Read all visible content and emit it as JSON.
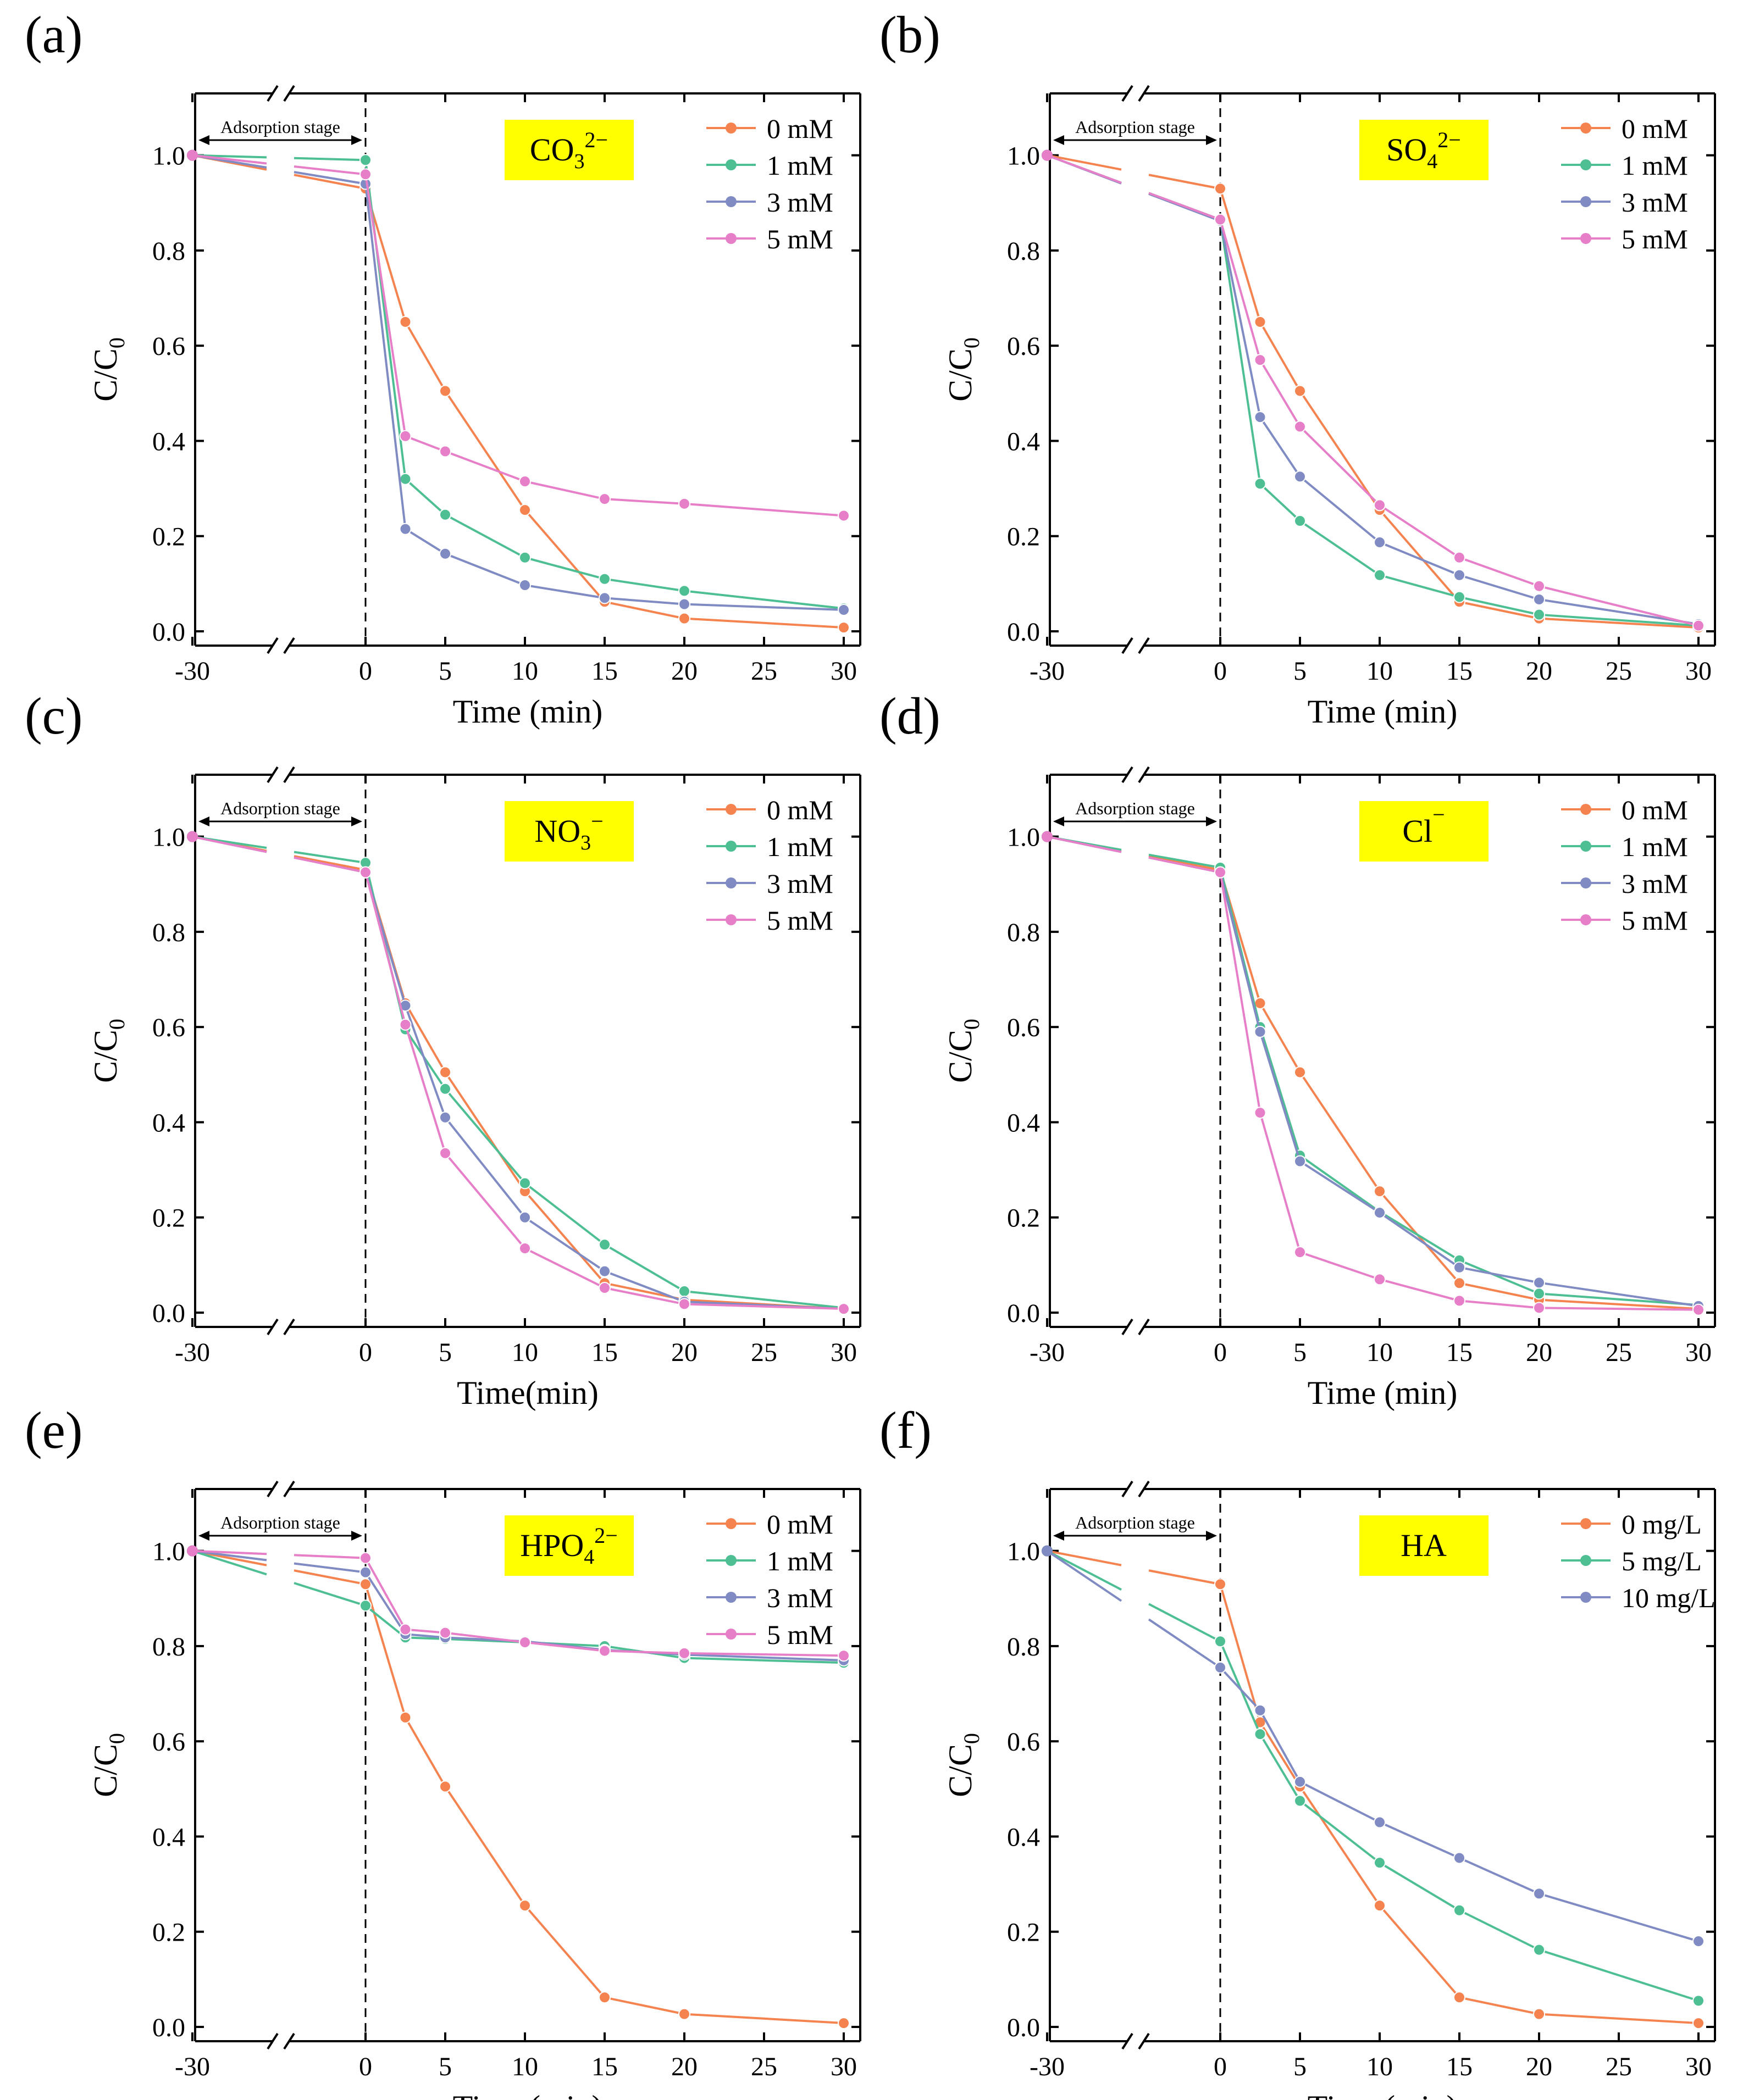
{
  "figure": {
    "adsorption_label": "Adsorption stage",
    "colors": {
      "s0": "#f4834f",
      "s1": "#4dbf93",
      "s2": "#7f8bc2",
      "s3": "#e77fc8",
      "highlight": "#ffff00",
      "axis": "#000000"
    }
  },
  "chart_data": [
    {
      "id": "a",
      "panel_label": "(a)",
      "type": "line",
      "title_parts": [
        {
          "t": "CO"
        },
        {
          "t": "3",
          "sub": true
        },
        {
          "t": "2−",
          "sup": true
        }
      ],
      "xlabel": "Time (min)",
      "ylabel": "C/C0",
      "xticks": [
        "-30",
        "0",
        "5",
        "10",
        "15",
        "20",
        "25",
        "30"
      ],
      "yticks": [
        "0.0",
        "0.2",
        "0.4",
        "0.6",
        "0.8",
        "1.0"
      ],
      "xlim": [
        0,
        30
      ],
      "ylim": [
        -0.03,
        1.13
      ],
      "x": [
        0,
        2.5,
        5,
        10,
        15,
        20,
        30
      ],
      "series": [
        {
          "name": "0 mM",
          "start": 1.0,
          "values": [
            0.93,
            0.65,
            0.505,
            0.255,
            0.062,
            0.027,
            0.008
          ]
        },
        {
          "name": "1 mM",
          "start": 1.0,
          "values": [
            0.99,
            0.32,
            0.245,
            0.155,
            0.11,
            0.085,
            0.048
          ]
        },
        {
          "name": "3 mM",
          "start": 1.0,
          "values": [
            0.94,
            0.215,
            0.163,
            0.097,
            0.07,
            0.057,
            0.045
          ]
        },
        {
          "name": "5 mM",
          "start": 1.0,
          "values": [
            0.96,
            0.41,
            0.378,
            0.315,
            0.278,
            0.268,
            0.243
          ]
        }
      ]
    },
    {
      "id": "b",
      "panel_label": "(b)",
      "type": "line",
      "title_parts": [
        {
          "t": "SO"
        },
        {
          "t": "4",
          "sub": true
        },
        {
          "t": "2−",
          "sup": true
        }
      ],
      "xlabel": "Time (min)",
      "ylabel": "C/C0",
      "xticks": [
        "-30",
        "0",
        "5",
        "10",
        "15",
        "20",
        "25",
        "30"
      ],
      "yticks": [
        "0.0",
        "0.2",
        "0.4",
        "0.6",
        "0.8",
        "1.0"
      ],
      "xlim": [
        0,
        30
      ],
      "ylim": [
        -0.03,
        1.13
      ],
      "x": [
        0,
        2.5,
        5,
        10,
        15,
        20,
        30
      ],
      "series": [
        {
          "name": "0 mM",
          "start": 1.0,
          "values": [
            0.93,
            0.65,
            0.505,
            0.255,
            0.062,
            0.027,
            0.008
          ]
        },
        {
          "name": "1 mM",
          "start": 1.0,
          "values": [
            0.865,
            0.31,
            0.232,
            0.118,
            0.072,
            0.035,
            0.012
          ]
        },
        {
          "name": "3 mM",
          "start": 1.0,
          "values": [
            0.862,
            0.45,
            0.325,
            0.187,
            0.118,
            0.067,
            0.015
          ]
        },
        {
          "name": "5 mM",
          "start": 1.0,
          "values": [
            0.865,
            0.57,
            0.43,
            0.265,
            0.155,
            0.095,
            0.012
          ]
        }
      ]
    },
    {
      "id": "c",
      "panel_label": "(c)",
      "type": "line",
      "title_parts": [
        {
          "t": "NO"
        },
        {
          "t": "3",
          "sub": true
        },
        {
          "t": "−",
          "sup": true
        }
      ],
      "xlabel": "Time(min)",
      "ylabel": "C/C0",
      "xticks": [
        "-30",
        "0",
        "5",
        "10",
        "15",
        "20",
        "25",
        "30"
      ],
      "yticks": [
        "0.0",
        "0.2",
        "0.4",
        "0.6",
        "0.8",
        "1.0"
      ],
      "xlim": [
        0,
        30
      ],
      "ylim": [
        -0.03,
        1.13
      ],
      "x": [
        0,
        2.5,
        5,
        10,
        15,
        20,
        30
      ],
      "series": [
        {
          "name": "0 mM",
          "start": 1.0,
          "values": [
            0.93,
            0.65,
            0.505,
            0.255,
            0.062,
            0.027,
            0.008
          ]
        },
        {
          "name": "1 mM",
          "start": 1.0,
          "values": [
            0.945,
            0.595,
            0.47,
            0.272,
            0.143,
            0.045,
            0.01
          ]
        },
        {
          "name": "3 mM",
          "start": 1.0,
          "values": [
            0.925,
            0.645,
            0.41,
            0.2,
            0.087,
            0.023,
            0.008
          ]
        },
        {
          "name": "5 mM",
          "start": 1.0,
          "values": [
            0.925,
            0.605,
            0.335,
            0.135,
            0.052,
            0.018,
            0.008
          ]
        }
      ]
    },
    {
      "id": "d",
      "panel_label": "(d)",
      "type": "line",
      "title_parts": [
        {
          "t": "Cl"
        },
        {
          "t": "−",
          "sup": true
        }
      ],
      "xlabel": "Time (min)",
      "ylabel": "C/C0",
      "xticks": [
        "-30",
        "0",
        "5",
        "10",
        "15",
        "20",
        "25",
        "30"
      ],
      "yticks": [
        "0.0",
        "0.2",
        "0.4",
        "0.6",
        "0.8",
        "1.0"
      ],
      "xlim": [
        0,
        30
      ],
      "ylim": [
        -0.03,
        1.13
      ],
      "x": [
        0,
        2.5,
        5,
        10,
        15,
        20,
        30
      ],
      "series": [
        {
          "name": "0 mM",
          "start": 1.0,
          "values": [
            0.93,
            0.65,
            0.505,
            0.255,
            0.062,
            0.027,
            0.008
          ]
        },
        {
          "name": "1 mM",
          "start": 1.0,
          "values": [
            0.935,
            0.6,
            0.33,
            0.212,
            0.11,
            0.04,
            0.016
          ]
        },
        {
          "name": "3 mM",
          "start": 1.0,
          "values": [
            0.925,
            0.59,
            0.318,
            0.21,
            0.095,
            0.063,
            0.014
          ]
        },
        {
          "name": "5 mM",
          "start": 1.0,
          "values": [
            0.925,
            0.42,
            0.127,
            0.07,
            0.025,
            0.01,
            0.006
          ]
        }
      ]
    },
    {
      "id": "e",
      "panel_label": "(e)",
      "type": "line",
      "title_parts": [
        {
          "t": "HPO"
        },
        {
          "t": "4",
          "sub": true
        },
        {
          "t": "2−",
          "sup": true
        }
      ],
      "xlabel": "Time (min)",
      "ylabel": "C/C0",
      "xticks": [
        "-30",
        "0",
        "5",
        "10",
        "15",
        "20",
        "25",
        "30"
      ],
      "yticks": [
        "0.0",
        "0.2",
        "0.4",
        "0.6",
        "0.8",
        "1.0"
      ],
      "xlim": [
        0,
        30
      ],
      "ylim": [
        -0.03,
        1.13
      ],
      "x": [
        0,
        2.5,
        5,
        10,
        15,
        20,
        30
      ],
      "series": [
        {
          "name": "0 mM",
          "start": 1.0,
          "values": [
            0.93,
            0.65,
            0.505,
            0.255,
            0.062,
            0.027,
            0.008
          ]
        },
        {
          "name": "1 mM",
          "start": 1.0,
          "values": [
            0.885,
            0.818,
            0.815,
            0.808,
            0.8,
            0.775,
            0.765
          ]
        },
        {
          "name": "3 mM",
          "start": 1.0,
          "values": [
            0.955,
            0.825,
            0.818,
            0.81,
            0.792,
            0.782,
            0.77
          ]
        },
        {
          "name": "5 mM",
          "start": 1.0,
          "values": [
            0.985,
            0.835,
            0.828,
            0.808,
            0.79,
            0.785,
            0.78
          ]
        }
      ]
    },
    {
      "id": "f",
      "panel_label": "(f)",
      "type": "line",
      "title_parts": [
        {
          "t": "HA"
        }
      ],
      "xlabel": "Time (min)",
      "ylabel": "C/C0",
      "xticks": [
        "-30",
        "0",
        "5",
        "10",
        "15",
        "20",
        "25",
        "30"
      ],
      "yticks": [
        "0.0",
        "0.2",
        "0.4",
        "0.6",
        "0.8",
        "1.0"
      ],
      "xlim": [
        0,
        30
      ],
      "ylim": [
        -0.03,
        1.13
      ],
      "x": [
        0,
        2.5,
        5,
        10,
        15,
        20,
        30
      ],
      "series": [
        {
          "name": "0 mg/L",
          "start": 1.0,
          "values": [
            0.93,
            0.64,
            0.505,
            0.255,
            0.062,
            0.027,
            0.008
          ]
        },
        {
          "name": "5 mg/L",
          "start": 1.0,
          "values": [
            0.81,
            0.615,
            0.475,
            0.345,
            0.245,
            0.162,
            0.055
          ]
        },
        {
          "name": "10 mg/L",
          "start": 1.0,
          "values": [
            0.755,
            0.665,
            0.515,
            0.43,
            0.355,
            0.28,
            0.18
          ]
        }
      ]
    }
  ]
}
